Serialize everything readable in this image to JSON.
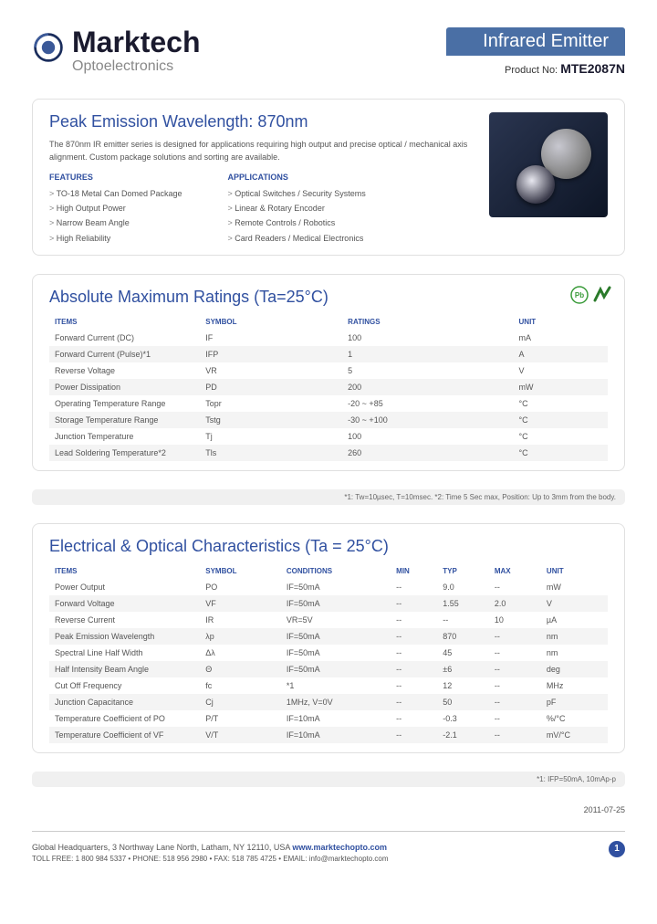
{
  "header": {
    "brand": "Marktech",
    "tagline": "Optoelectronics",
    "product_title": "Infrared Emitter",
    "product_no_prefix": "Product No:",
    "product_no": "MTE2087N",
    "logo_color1": "#3b5998",
    "logo_color2": "#1a2d5c"
  },
  "intro": {
    "title": "Peak Emission Wavelength: 870nm",
    "desc": "The 870nm IR emitter series is designed for applications requiring high output and precise optical / mechanical axis alignment. Custom package solutions and sorting are available.",
    "features_title": "FEATURES",
    "features": [
      "TO-18 Metal Can Domed Package",
      "High Output Power",
      "Narrow Beam Angle",
      "High Reliability"
    ],
    "apps_title": "APPLICATIONS",
    "apps": [
      "Optical Switches / Security Systems",
      "Linear & Rotary Encoder",
      "Remote Controls / Robotics",
      "Card Readers / Medical Electronics"
    ]
  },
  "ratings": {
    "title": "Absolute Maximum Ratings (Ta=25°C)",
    "headers": [
      "ITEMS",
      "SYMBOL",
      "RATINGS",
      "UNIT"
    ],
    "rows": [
      [
        "Forward Current (DC)",
        "IF",
        "100",
        "mA"
      ],
      [
        "Forward Current (Pulse)*1",
        "IFP",
        "1",
        "A"
      ],
      [
        "Reverse Voltage",
        "VR",
        "5",
        "V"
      ],
      [
        "Power Dissipation",
        "PD",
        "200",
        "mW"
      ],
      [
        "Operating Temperature Range",
        "Topr",
        "-20 ~ +85",
        "°C"
      ],
      [
        "Storage Temperature Range",
        "Tstg",
        "-30 ~ +100",
        "°C"
      ],
      [
        "Junction Temperature",
        "Tj",
        "100",
        "°C"
      ],
      [
        "Lead Soldering Temperature*2",
        "Tls",
        "260",
        "°C"
      ]
    ],
    "footnote": "*1: Tw=10µsec, T=10msec. *2: Time 5 Sec max, Position: Up to 3mm from the body."
  },
  "electrical": {
    "title": "Electrical & Optical Characteristics (Ta = 25°C)",
    "headers": [
      "ITEMS",
      "SYMBOL",
      "CONDITIONS",
      "MIN",
      "TYP",
      "MAX",
      "UNIT"
    ],
    "rows": [
      [
        "Power Output",
        "PO",
        "IF=50mA",
        "--",
        "9.0",
        "--",
        "mW"
      ],
      [
        "Forward Voltage",
        "VF",
        "IF=50mA",
        "--",
        "1.55",
        "2.0",
        "V"
      ],
      [
        "Reverse Current",
        "IR",
        "VR=5V",
        "--",
        "--",
        "10",
        "µA"
      ],
      [
        "Peak Emission Wavelength",
        "λp",
        "IF=50mA",
        "--",
        "870",
        "--",
        "nm"
      ],
      [
        "Spectral Line Half Width",
        "Δλ",
        "IF=50mA",
        "--",
        "45",
        "--",
        "nm"
      ],
      [
        "Half Intensity Beam Angle",
        "Θ",
        "IF=50mA",
        "--",
        "±6",
        "--",
        "deg"
      ],
      [
        "Cut Off Frequency",
        "fc",
        "*1",
        "--",
        "12",
        "--",
        "MHz"
      ],
      [
        "Junction Capacitance",
        "Cj",
        "1MHz, V=0V",
        "--",
        "50",
        "--",
        "pF"
      ],
      [
        "Temperature Coefficient of PO",
        "P/T",
        "IF=10mA",
        "--",
        "-0.3",
        "--",
        "%/°C"
      ],
      [
        "Temperature Coefficient of VF",
        "V/T",
        "IF=10mA",
        "--",
        "-2.1",
        "--",
        "mV/°C"
      ]
    ],
    "footnote": "*1: IFP=50mA, 10mAp-p"
  },
  "date": "2011-07-25",
  "footer": {
    "line1_pre": "Global Headquarters, 3 Northway Lane North, Latham, NY 12110, USA ",
    "url": "www.marktechopto.com",
    "line2": "TOLL FREE: 1 800 984 5337 • PHONE: 518 956 2980 • FAX: 518 785 4725 • EMAIL: info@marktechopto.com",
    "page": "1"
  },
  "colors": {
    "heading": "#3050a0",
    "banner": "#4a6fa5",
    "alt_row": "#f4f4f4",
    "pb_green": "#3a9b3a",
    "rohs_green": "#2a7a2a"
  }
}
